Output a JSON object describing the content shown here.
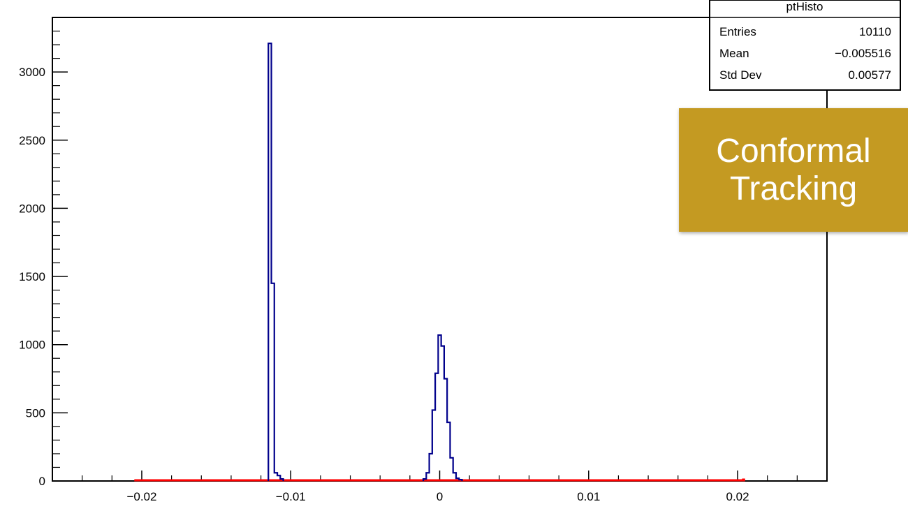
{
  "chart_data": {
    "type": "histogram",
    "title": "",
    "xlabel": "",
    "ylabel": "",
    "xlim": [
      -0.026,
      0.026
    ],
    "ylim": [
      0,
      3400
    ],
    "x_ticks": [
      -0.02,
      -0.01,
      0,
      0.01,
      0.02
    ],
    "x_tick_labels": [
      "−0.02",
      "−0.01",
      "0",
      "0.01",
      "0.02"
    ],
    "y_ticks": [
      0,
      500,
      1000,
      1500,
      2000,
      2500,
      3000
    ],
    "y_tick_labels": [
      "0",
      "500",
      "1000",
      "1500",
      "2000",
      "2500",
      "3000"
    ],
    "series": [
      {
        "color": "#00008b",
        "bin_width": 0.0002,
        "bins": [
          {
            "x": -0.0114,
            "y": 3210
          },
          {
            "x": -0.0112,
            "y": 1450
          },
          {
            "x": -0.011,
            "y": 60
          },
          {
            "x": -0.0108,
            "y": 40
          },
          {
            "x": -0.0106,
            "y": 15
          },
          {
            "x": -0.001,
            "y": 15
          },
          {
            "x": -0.0008,
            "y": 60
          },
          {
            "x": -0.0006,
            "y": 200
          },
          {
            "x": -0.0004,
            "y": 520
          },
          {
            "x": -0.0002,
            "y": 790
          },
          {
            "x": 0.0,
            "y": 1070
          },
          {
            "x": 0.0002,
            "y": 990
          },
          {
            "x": 0.0004,
            "y": 750
          },
          {
            "x": 0.0006,
            "y": 430
          },
          {
            "x": 0.0008,
            "y": 170
          },
          {
            "x": 0.001,
            "y": 60
          },
          {
            "x": 0.0012,
            "y": 20
          },
          {
            "x": 0.0014,
            "y": 10
          }
        ]
      },
      {
        "color": "#ff0000",
        "x_range": [
          -0.0205,
          0.0205
        ],
        "level": 0,
        "end_bin": {
          "x": 0.0204,
          "y": 18
        }
      }
    ],
    "stats_box": {
      "title": "ptHisto",
      "rows": [
        {
          "label": "Entries",
          "value": "10110"
        },
        {
          "label": "Mean",
          "value": "−0.005516"
        },
        {
          "label": "Std Dev",
          "value": "0.00577"
        }
      ]
    }
  },
  "overlay": {
    "line1": "Conformal",
    "line2": "Tracking"
  }
}
